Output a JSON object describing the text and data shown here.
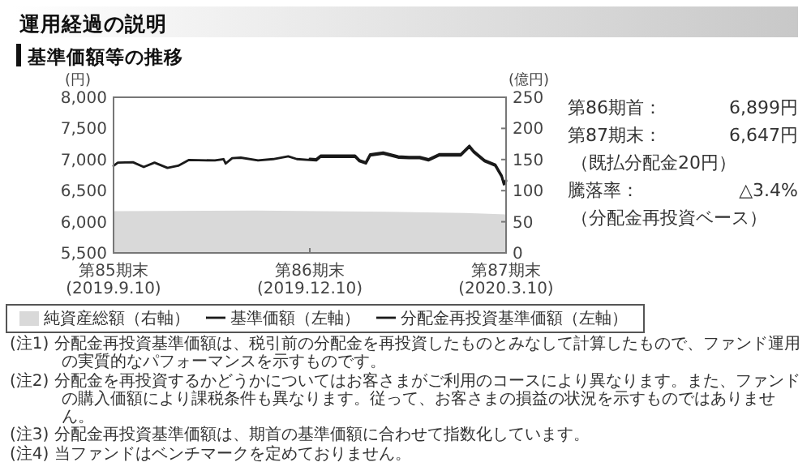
{
  "chart_data": [
    {
      "type": "line",
      "title": "運用経過の説明",
      "subtitle": "基準価額等の推移",
      "ylabel": "(円)",
      "y2label": "(億円)",
      "xlim": [
        "2019-09-10",
        "2020-03-10"
      ],
      "xticks": [
        {
          "value": "2019-09-10",
          "label": "第85期末\n(2019.9.10)"
        },
        {
          "value": "2019-12-10",
          "label": "第86期末\n(2019.12.10)"
        },
        {
          "value": "2020-03-10",
          "label": "第87期末\n(2020.3.10)"
        }
      ],
      "ylim": [
        5500,
        8000
      ],
      "yticks": [
        {
          "value": 5500,
          "label": "5,500"
        },
        {
          "value": 6000,
          "label": "6,000"
        },
        {
          "value": 6500,
          "label": "6,500"
        },
        {
          "value": 7000,
          "label": "7,000"
        },
        {
          "value": 7500,
          "label": "7,500"
        },
        {
          "value": 8000,
          "label": "8,000"
        }
      ],
      "y2lim": [
        0,
        250
      ],
      "y2ticks": [
        0,
        50,
        100,
        150,
        200,
        250
      ],
      "legend": "bottom",
      "series": [
        {
          "name": "純資産総額（右軸）",
          "type": "area",
          "axis": "y2",
          "color": "#d9d9d9",
          "x": [
            "2019-09-10",
            "2019-11-15",
            "2020-01-15",
            "2020-02-20",
            "2020-03-10"
          ],
          "values": [
            67,
            68,
            66,
            64,
            62
          ]
        },
        {
          "name": "基準価額（左軸）",
          "color": "#1a1a1a",
          "x": [
            "2019-09-10",
            "2019-09-12",
            "2019-09-19",
            "2019-09-24",
            "2019-09-29",
            "2019-10-05",
            "2019-10-10",
            "2019-10-15",
            "2019-10-27",
            "2019-10-31",
            "2019-11-01",
            "2019-11-04",
            "2019-11-08",
            "2019-11-16",
            "2019-11-23",
            "2019-11-30",
            "2019-12-04",
            "2019-12-10",
            "2019-12-13",
            "2019-12-15",
            "2019-12-24",
            "2019-12-31",
            "2020-01-02",
            "2020-01-05",
            "2020-01-07",
            "2020-01-13",
            "2020-01-20",
            "2020-01-25",
            "2020-01-30",
            "2020-02-03",
            "2020-02-08",
            "2020-02-18",
            "2020-02-22",
            "2020-02-24",
            "2020-02-29",
            "2020-03-05",
            "2020-03-08",
            "2020-03-09",
            "2020-03-10"
          ],
          "values": [
            6899,
            6950,
            6957,
            6880,
            6950,
            6865,
            6900,
            6993,
            6985,
            7007,
            6935,
            7022,
            7030,
            6985,
            7007,
            7050,
            7007,
            6993,
            6985,
            7043,
            7043,
            7043,
            6971,
            6935,
            7065,
            7093,
            7030,
            7022,
            7022,
            6985,
            7065,
            7065,
            7201,
            7115,
            6971,
            6899,
            6720,
            6600,
            6647
          ]
        },
        {
          "name": "分配金再投資基準価額（左軸）",
          "color": "#1a1a1a",
          "x": [
            "2019-12-10",
            "2019-12-13",
            "2019-12-15",
            "2019-12-24",
            "2019-12-31",
            "2020-01-02",
            "2020-01-05",
            "2020-01-07",
            "2020-01-13",
            "2020-01-20",
            "2020-01-25",
            "2020-01-30",
            "2020-02-03",
            "2020-02-08",
            "2020-02-18",
            "2020-02-22",
            "2020-02-24",
            "2020-02-29",
            "2020-03-05",
            "2020-03-08",
            "2020-03-09",
            "2020-03-10"
          ],
          "values": [
            7013,
            7005,
            7063,
            7063,
            7063,
            6991,
            6955,
            7085,
            7113,
            7050,
            7042,
            7042,
            7005,
            7085,
            7085,
            7221,
            7135,
            6991,
            6919,
            6740,
            6620,
            6667
          ]
        }
      ],
      "annotations": [
        "(注1) 分配金再投資基準価額は、税引前の分配金を再投資したものとみなして計算したもので、ファンド運用の実質的なパフォーマンスを示すものです。",
        "(注2) 分配金を再投資するかどうかについてはお客さまがご利用のコースにより異なります。また、ファンドの購入価額により課税条件も異なります。従って、お客さまの損益の状況を示すものではありません。",
        "(注3) 分配金再投資基準価額は、期首の基準価額に合わせて指数化しています。",
        "(注4) 当ファンドはベンチマークを定めておりません。"
      ]
    },
    {
      "type": "other",
      "annotations": [
        "第86期首：",
        "6,899円",
        "第87期末：",
        "6,647円",
        "（既払分配金20円）",
        "騰落率：",
        "△3.4%",
        "（分配金再投資ベース）"
      ]
    }
  ]
}
